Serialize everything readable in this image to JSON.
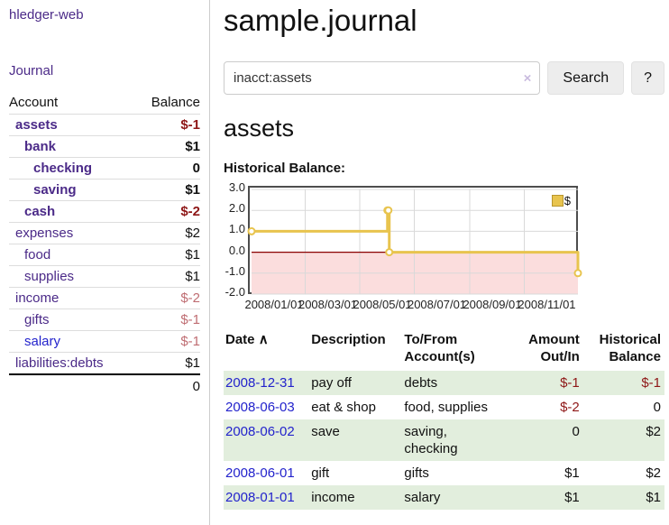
{
  "app": {
    "brand": "hledger-web"
  },
  "theme": {
    "purple": "#4b2a88",
    "blue": "#2323cc",
    "negative_strong": "#8e1717",
    "negative_soft": "#bf6d72",
    "row_green": "#e2eedd",
    "button_bg": "#ededed",
    "chart_line": "#e8c44e",
    "chart_zero_line": "#8b0000",
    "chart_negative_fill": "#fbdddd",
    "chart_border": "#4d4d4d",
    "chart_grid": "#d9d9d9"
  },
  "sidebar": {
    "journal_label": "Journal",
    "accounts_table": {
      "account_header": "Account",
      "balance_header": "Balance",
      "rows": [
        {
          "name": "assets",
          "balance": "$-1",
          "indent": 1,
          "bold": true,
          "balance_tone": "neg-strong",
          "link": "purple"
        },
        {
          "name": "bank",
          "balance": "$1",
          "indent": 2,
          "bold": true,
          "balance_tone": "normal",
          "link": "purple"
        },
        {
          "name": "checking",
          "balance": "0",
          "indent": 3,
          "bold": true,
          "balance_tone": "normal",
          "link": "purple"
        },
        {
          "name": "saving",
          "balance": "$1",
          "indent": 3,
          "bold": true,
          "balance_tone": "normal",
          "link": "purple"
        },
        {
          "name": "cash",
          "balance": "$-2",
          "indent": 2,
          "bold": true,
          "balance_tone": "neg-strong",
          "link": "purple"
        },
        {
          "name": "expenses",
          "balance": "$2",
          "indent": 1,
          "bold": false,
          "balance_tone": "normal",
          "link": "purple"
        },
        {
          "name": "food",
          "balance": "$1",
          "indent": 2,
          "bold": false,
          "balance_tone": "normal",
          "link": "purple"
        },
        {
          "name": "supplies",
          "balance": "$1",
          "indent": 2,
          "bold": false,
          "balance_tone": "normal",
          "link": "purple"
        },
        {
          "name": "income",
          "balance": "$-2",
          "indent": 1,
          "bold": false,
          "balance_tone": "neg-soft",
          "link": "purple"
        },
        {
          "name": "gifts",
          "balance": "$-1",
          "indent": 2,
          "bold": false,
          "balance_tone": "neg-soft",
          "link": "purple"
        },
        {
          "name": "salary",
          "balance": "$-1",
          "indent": 2,
          "bold": false,
          "balance_tone": "neg-soft",
          "link": "blue"
        },
        {
          "name": "liabilities:debts",
          "balance": "$1",
          "indent": 1,
          "bold": false,
          "balance_tone": "normal",
          "link": "purple"
        }
      ],
      "total": "0"
    }
  },
  "main": {
    "title": "sample.journal",
    "search": {
      "value": "inacct:assets",
      "clear_icon": "×",
      "button_label": "Search",
      "help_label": "?"
    },
    "account_heading": "assets",
    "chart_heading": "Historical Balance:"
  },
  "chart_data": {
    "type": "line",
    "title": "Historical Balance",
    "step": "after",
    "series": [
      {
        "name": "$",
        "points": [
          {
            "date": "2008-01-01",
            "day": 0,
            "value": 1
          },
          {
            "date": "2008-06-01",
            "day": 152,
            "value": 2
          },
          {
            "date": "2008-06-02",
            "day": 153,
            "value": 2
          },
          {
            "date": "2008-06-03",
            "day": 154,
            "value": 0
          },
          {
            "date": "2008-12-31",
            "day": 365,
            "value": -1
          }
        ]
      }
    ],
    "xlim_days": [
      0,
      365
    ],
    "ylim": [
      -2,
      3
    ],
    "y_ticks": [
      "3.0",
      "2.0",
      "1.0",
      "0.0",
      "-1.0",
      "-2.0"
    ],
    "x_ticks": [
      {
        "label": "2008/01/01",
        "day": 0
      },
      {
        "label": "2008/03/01",
        "day": 60
      },
      {
        "label": "2008/05/01",
        "day": 121
      },
      {
        "label": "2008/07/01",
        "day": 182
      },
      {
        "label": "2008/09/01",
        "day": 244
      },
      {
        "label": "2008/11/01",
        "day": 305
      }
    ],
    "legend": {
      "label": "$",
      "position": "top-right"
    },
    "grid": true,
    "zero_line": true,
    "negative_region_shaded": true
  },
  "register": {
    "headers": {
      "date": "Date",
      "sort_icon": "∧",
      "description": "Description",
      "accounts": "To/From Account(s)",
      "amount": "Amount Out/In",
      "balance": "Historical Balance"
    },
    "rows": [
      {
        "date": "2008-12-31",
        "description": "pay off",
        "accounts": "debts",
        "amount": "$-1",
        "amount_neg": true,
        "balance": "$-1",
        "balance_neg": true
      },
      {
        "date": "2008-06-03",
        "description": "eat & shop",
        "accounts": "food, supplies",
        "amount": "$-2",
        "amount_neg": true,
        "balance": "0",
        "balance_neg": false
      },
      {
        "date": "2008-06-02",
        "description": "save",
        "accounts": "saving, checking",
        "amount": "0",
        "amount_neg": false,
        "balance": "$2",
        "balance_neg": false
      },
      {
        "date": "2008-06-01",
        "description": "gift",
        "accounts": "gifts",
        "amount": "$1",
        "amount_neg": false,
        "balance": "$2",
        "balance_neg": false
      },
      {
        "date": "2008-01-01",
        "description": "income",
        "accounts": "salary",
        "amount": "$1",
        "amount_neg": false,
        "balance": "$1",
        "balance_neg": false
      }
    ]
  }
}
